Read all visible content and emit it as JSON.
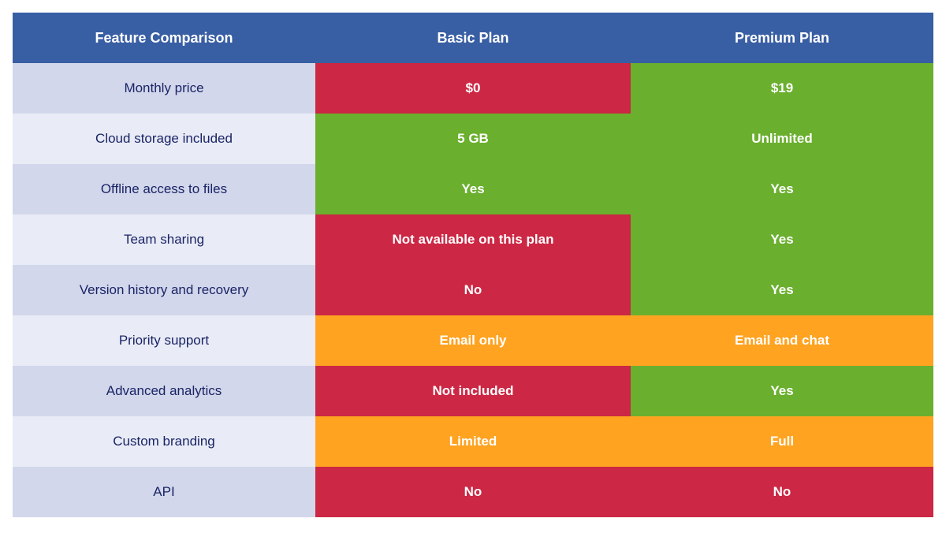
{
  "table": {
    "header": [
      "Feature Comparison",
      "Basic Plan",
      "Premium Plan"
    ],
    "rows": [
      {
        "label": "Monthly price",
        "cells": [
          {
            "text": "$0",
            "color": "#cc2744"
          },
          {
            "text": "$19",
            "color": "#6aaf2e"
          }
        ]
      },
      {
        "label": "Cloud storage included",
        "cells": [
          {
            "text": "5 GB",
            "color": "#6aaf2e"
          },
          {
            "text": "Unlimited",
            "color": "#6aaf2e"
          }
        ]
      },
      {
        "label": "Offline access to files",
        "cells": [
          {
            "text": "Yes",
            "color": "#6aaf2e"
          },
          {
            "text": "Yes",
            "color": "#6aaf2e"
          }
        ]
      },
      {
        "label": "Team sharing",
        "cells": [
          {
            "text": "Not available on this plan",
            "color": "#cc2744"
          },
          {
            "text": "Yes",
            "color": "#6aaf2e"
          }
        ]
      },
      {
        "label": "Version history and recovery",
        "cells": [
          {
            "text": "No",
            "color": "#cc2744"
          },
          {
            "text": "Yes",
            "color": "#6aaf2e"
          }
        ]
      },
      {
        "label": "Priority support",
        "cells": [
          {
            "text": "Email only",
            "color": "#ffa321"
          },
          {
            "text": "Email and chat",
            "color": "#ffa321"
          }
        ]
      },
      {
        "label": "Advanced analytics",
        "cells": [
          {
            "text": "Not included",
            "color": "#cc2744"
          },
          {
            "text": "Yes",
            "color": "#6aaf2e"
          }
        ]
      },
      {
        "label": "Custom branding",
        "cells": [
          {
            "text": "Limited",
            "color": "#ffa321"
          },
          {
            "text": "Full",
            "color": "#ffa321"
          }
        ]
      },
      {
        "label": "API",
        "cells": [
          {
            "text": "No",
            "color": "#cc2744"
          },
          {
            "text": "No",
            "color": "#cc2744"
          }
        ]
      }
    ]
  }
}
